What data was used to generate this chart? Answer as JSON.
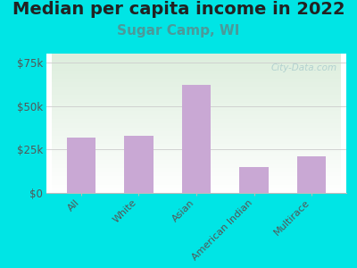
{
  "title": "Median per capita income in 2022",
  "subtitle": "Sugar Camp, WI",
  "categories": [
    "All",
    "White",
    "Asian",
    "American Indian",
    "Multirace"
  ],
  "values": [
    32000,
    33000,
    62000,
    15000,
    21000
  ],
  "bar_color": "#c9a8d4",
  "title_fontsize": 14,
  "title_color": "#222222",
  "subtitle_fontsize": 11,
  "subtitle_color": "#4a9a9a",
  "tick_label_color": "#555555",
  "background_outer": "#00e5e5",
  "background_inner_top": "#ddeedd",
  "background_inner_bottom": "#ffffff",
  "ylim": [
    0,
    80000
  ],
  "yticks": [
    0,
    25000,
    50000,
    75000
  ],
  "ytick_labels": [
    "$0",
    "$25k",
    "$50k",
    "$75k"
  ],
  "watermark": "City-Data.com",
  "watermark_color": "#aacccc",
  "grid_color": "#cccccc"
}
